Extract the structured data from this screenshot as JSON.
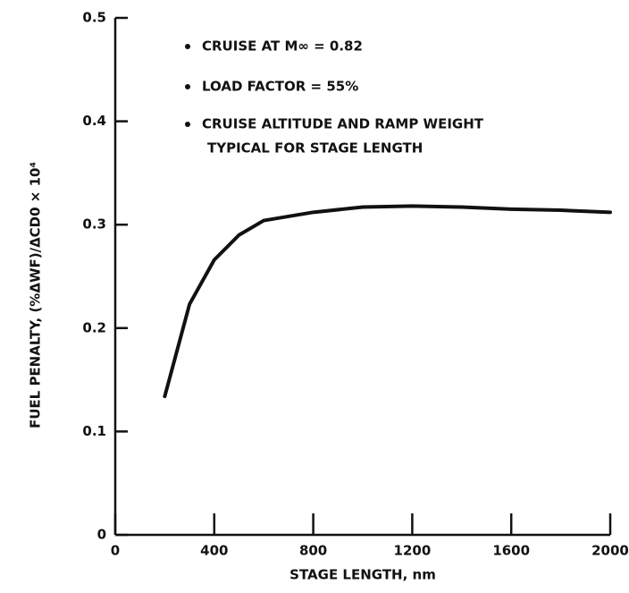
{
  "chart_data": {
    "type": "line",
    "x_label": "STAGE LENGTH, nm",
    "y_label": "FUEL PENALTY, (%ΔWF)/ΔCD0 × 10⁴",
    "annotations": [
      "CRUISE AT M∞ = 0.82",
      "LOAD FACTOR = 55%",
      "CRUISE ALTITUDE AND RAMP WEIGHT",
      "TYPICAL FOR STAGE LENGTH"
    ],
    "x": [
      200,
      300,
      400,
      500,
      600,
      800,
      1000,
      1200,
      1400,
      1600,
      1800,
      2000
    ],
    "series": [
      {
        "color": "#111111",
        "values": [
          0.134,
          0.223,
          0.266,
          0.29,
          0.304,
          0.312,
          0.317,
          0.318,
          0.317,
          0.315,
          0.314,
          0.312
        ]
      }
    ],
    "xlim": [
      0,
      2000
    ],
    "xticks": [
      0,
      400,
      800,
      1200,
      1600,
      2000
    ],
    "ylim": [
      0,
      0.5
    ],
    "yticks": [
      0,
      0.1,
      0.2,
      0.3,
      0.4,
      0.5
    ],
    "grid": false
  }
}
